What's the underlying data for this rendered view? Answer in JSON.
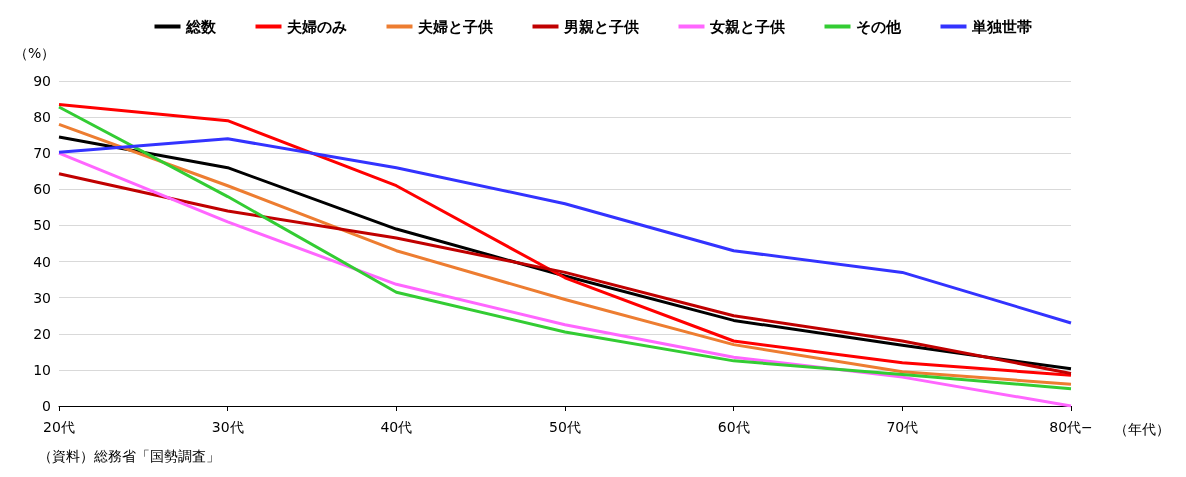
{
  "chart_data": {
    "type": "line",
    "ylabel": "（%）",
    "xlabel": "（年代）",
    "categories": [
      "20代",
      "30代",
      "40代",
      "50代",
      "60代",
      "70代",
      "80代−"
    ],
    "series": [
      {
        "name": "総数",
        "color": "#000000",
        "values": [
          74.5,
          66,
          49,
          36,
          23.7,
          16.8,
          10.3
        ]
      },
      {
        "name": "夫婦のみ",
        "color": "#ff0000",
        "values": [
          83.5,
          79,
          61,
          35.5,
          18,
          12,
          8.5
        ]
      },
      {
        "name": "夫婦と子供",
        "color": "#ed7d31",
        "values": [
          78,
          61,
          43,
          29.5,
          17,
          9.5,
          6
        ]
      },
      {
        "name": "男親と子供",
        "color": "#c00000",
        "values": [
          64.3,
          54,
          46.5,
          37,
          25,
          18,
          9
        ]
      },
      {
        "name": "女親と子供",
        "color": "#ff66ff",
        "values": [
          70,
          51,
          33.7,
          22.5,
          13.5,
          8,
          0
        ]
      },
      {
        "name": "その他",
        "color": "#33cc33",
        "values": [
          82.8,
          58,
          31.5,
          20.5,
          12.5,
          8.7,
          4.8
        ]
      },
      {
        "name": "単独世帯",
        "color": "#3333ff",
        "values": [
          70.3,
          74,
          66,
          56,
          43,
          37,
          23
        ]
      }
    ],
    "ylim": [
      0,
      90
    ],
    "yticks": [
      0,
      10,
      20,
      30,
      40,
      50,
      60,
      70,
      80,
      90
    ],
    "grid": "y",
    "legend": "top",
    "marker": "none",
    "line_style": "solid",
    "annotations": [
      "（資料）総務省「国勢調査」"
    ]
  }
}
